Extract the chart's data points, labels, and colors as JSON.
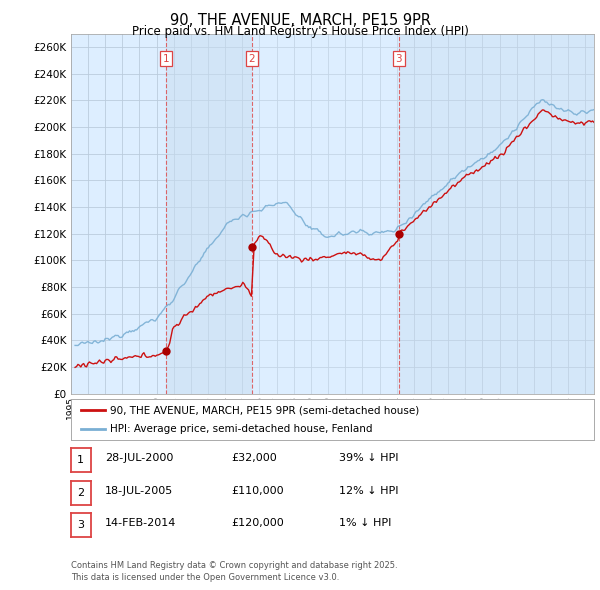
{
  "title": "90, THE AVENUE, MARCH, PE15 9PR",
  "subtitle": "Price paid vs. HM Land Registry's House Price Index (HPI)",
  "legend_line1": "90, THE AVENUE, MARCH, PE15 9PR (semi-detached house)",
  "legend_line2": "HPI: Average price, semi-detached house, Fenland",
  "footer1": "Contains HM Land Registry data © Crown copyright and database right 2025.",
  "footer2": "This data is licensed under the Open Government Licence v3.0.",
  "transactions": [
    {
      "num": 1,
      "date": "28-JUL-2000",
      "price": "£32,000",
      "hpi": "39% ↓ HPI",
      "year": 2000.57,
      "price_val": 32000
    },
    {
      "num": 2,
      "date": "18-JUL-2005",
      "price": "£110,000",
      "hpi": "12% ↓ HPI",
      "year": 2005.54,
      "price_val": 110000
    },
    {
      "num": 3,
      "date": "14-FEB-2014",
      "price": "£120,000",
      "hpi": "1% ↓ HPI",
      "year": 2014.12,
      "price_val": 120000
    }
  ],
  "vline_years": [
    2000.57,
    2005.54,
    2014.12
  ],
  "vline_color": "#dd4444",
  "hpi_color": "#7aafd4",
  "price_color": "#cc1111",
  "dot_color": "#aa0000",
  "chart_bg": "#ddeeff",
  "ylim": [
    0,
    270000
  ],
  "yticks": [
    0,
    20000,
    40000,
    60000,
    80000,
    100000,
    120000,
    140000,
    160000,
    180000,
    200000,
    220000,
    240000,
    260000
  ],
  "xlim_start": 1995.25,
  "xlim_end": 2025.5,
  "background_color": "#ffffff",
  "grid_color": "#bbccdd"
}
